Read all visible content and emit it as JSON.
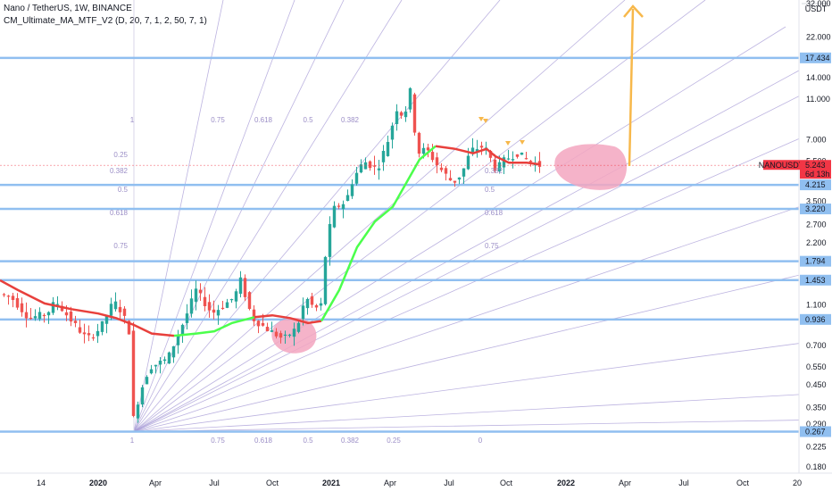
{
  "header": {
    "title": "Nano / TetherUS, 1W, BINANCE",
    "indicator": "CM_Ultimate_MA_MTF_V2 (D, 20, 7, 1, 2, 50, 7, 1)"
  },
  "price_axis": {
    "currency": "USDT",
    "ticks": [
      "32.000",
      "22.000",
      "14.000",
      "11.000",
      "7.000",
      "5.500",
      "3.500",
      "2.700",
      "2.200",
      "1.100",
      "0.700",
      "0.550",
      "0.450",
      "0.350",
      "0.290",
      "0.225",
      "0.180"
    ],
    "current_symbol": "NANOUSDT",
    "current_price": "5.243",
    "countdown": "6d 13h"
  },
  "time_axis": {
    "labels": [
      "14",
      "2020",
      "Apr",
      "Jul",
      "Oct",
      "2021",
      "Apr",
      "Jul",
      "Oct",
      "2022",
      "Apr",
      "Jul",
      "Oct",
      "20"
    ]
  },
  "colors": {
    "up": "#26a69a",
    "down": "#ef5350",
    "hline": "#90bff0",
    "fan": "#a69ad6",
    "ma_up": "#4cff4c",
    "ma_down": "#e8403c",
    "highlight": "#f3a6c0",
    "arrow": "#f7b84b",
    "price_tag": "#f23645"
  },
  "chart_data": {
    "type": "candlestick",
    "title": "Nano / TetherUS, 1W, BINANCE",
    "y_scale": "log",
    "ylim": [
      0.17,
      34
    ],
    "horizontal_levels": [
      "17.434",
      "4.215",
      "3.220",
      "1.794",
      "1.453",
      "0.936",
      "0.267"
    ],
    "gann_fan": {
      "anchor": {
        "date": "2020-03-12",
        "price": 0.267
      },
      "ratio_labels_bottom": [
        "1",
        "0.75",
        "0.618",
        "0.5",
        "0.382",
        "0.25",
        "0"
      ],
      "ratio_labels_top": [
        "1",
        "0.75",
        "0.618",
        "0.5",
        "0.382"
      ],
      "ratio_labels_left": [
        "0.25",
        "0.382",
        "0.5",
        "0.618",
        "0.75"
      ],
      "ratio_labels_right": [
        "0.382",
        "0.5",
        "0.618",
        "0.75"
      ]
    },
    "projection_target": "up from ~4.5 toward >32 by Apr 2022"
  }
}
